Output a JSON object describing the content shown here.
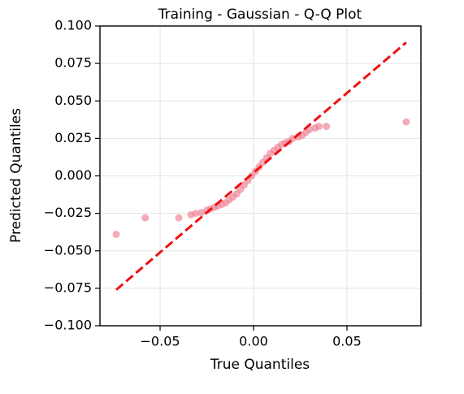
{
  "chart_data": {
    "type": "scatter",
    "title": "Training - Gaussian - Q-Q Plot",
    "x_label": "True Quantiles",
    "y_label": "Predicted Quantiles",
    "xlim": [
      -0.0822,
      0.0896
    ],
    "ylim": [
      -0.1,
      0.1
    ],
    "xticks": [
      {
        "value": -0.05,
        "label": "−0.05"
      },
      {
        "value": 0,
        "label": "0.00"
      },
      {
        "value": 0.05,
        "label": "0.05"
      }
    ],
    "yticks": [
      {
        "value": -0.1,
        "label": "−0.100"
      },
      {
        "value": -0.075,
        "label": "−0.075"
      },
      {
        "value": -0.05,
        "label": "−0.050"
      },
      {
        "value": -0.025,
        "label": "−0.025"
      },
      {
        "value": 0,
        "label": "0.000"
      },
      {
        "value": 0.025,
        "label": "0.025"
      },
      {
        "value": 0.05,
        "label": "0.050"
      },
      {
        "value": 0.075,
        "label": "0.075"
      },
      {
        "value": 0.1,
        "label": "0.100"
      }
    ],
    "grid": true,
    "series": [
      {
        "color": "#f0879a",
        "x": [
          -0.0735,
          -0.058,
          -0.04,
          -0.0335,
          -0.031,
          -0.028,
          -0.025,
          -0.023,
          -0.021,
          -0.019,
          -0.017,
          -0.015,
          -0.013,
          -0.011,
          -0.009,
          -0.007,
          -0.005,
          -0.003,
          -0.001,
          0.001,
          0.003,
          0.005,
          0.007,
          0.009,
          0.011,
          0.013,
          0.015,
          0.017,
          0.019,
          0.021,
          0.024,
          0.026,
          0.028,
          0.03,
          0.033,
          0.035,
          0.039,
          0.0817
        ],
        "y": [
          -0.039,
          -0.028,
          -0.028,
          -0.026,
          -0.025,
          -0.0245,
          -0.023,
          -0.022,
          -0.021,
          -0.02,
          -0.019,
          -0.018,
          -0.016,
          -0.014,
          -0.012,
          -0.009,
          -0.006,
          -0.003,
          0.0,
          0.003,
          0.006,
          0.009,
          0.012,
          0.015,
          0.017,
          0.019,
          0.021,
          0.022,
          0.023,
          0.025,
          0.026,
          0.027,
          0.029,
          0.031,
          0.032,
          0.033,
          0.033,
          0.036
        ]
      },
      {
        "color": "#ee1111",
        "line": true,
        "x": [
          -0.0735,
          0.0817
        ],
        "y": [
          -0.076,
          0.089
        ]
      }
    ]
  }
}
